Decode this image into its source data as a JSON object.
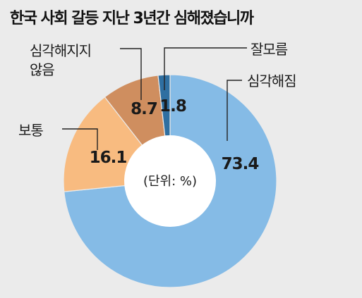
{
  "chart_data": {
    "type": "pie",
    "title": "한국 사회 갈등 지난 3년간 심해졌습니까",
    "unit_label": "(단위: %)",
    "slices": [
      {
        "label": "심각해짐",
        "value": 73.4,
        "value_label": "73.4",
        "color": "#85bbe6"
      },
      {
        "label": "보통",
        "value": 16.1,
        "value_label": "16.1",
        "color": "#f8bb80"
      },
      {
        "label": "심각해지지 않음",
        "label_lines": [
          "심각해지지",
          "않음"
        ],
        "value": 8.7,
        "value_label": "8.7",
        "color": "#cf8e5f"
      },
      {
        "label": "잘모름",
        "value": 1.8,
        "value_label": "1.8",
        "color": "#2f6fa1"
      }
    ]
  }
}
